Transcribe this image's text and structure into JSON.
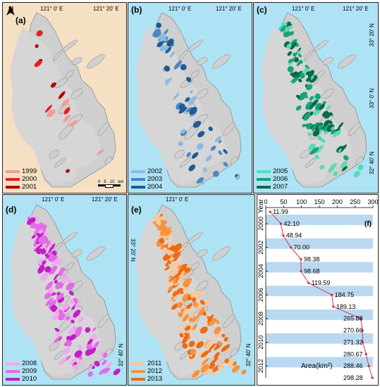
{
  "panels": [
    {
      "label": "(a)",
      "years": [
        "1999",
        "2000",
        "2001"
      ],
      "colors": [
        "#f39a9a",
        "#e32121",
        "#b20000"
      ]
    },
    {
      "label": "(b)",
      "years": [
        "2002",
        "2003",
        "2004"
      ],
      "colors": [
        "#8fb9e0",
        "#4a87c4",
        "#1f5b92"
      ]
    },
    {
      "label": "(c)",
      "years": [
        "2005",
        "2006",
        "2007"
      ],
      "colors": [
        "#58dab8",
        "#16a37a",
        "#0b6a45"
      ]
    },
    {
      "label": "(d)",
      "years": [
        "2008",
        "2009",
        "2010"
      ],
      "colors": [
        "#f0a9ef",
        "#e26ce6",
        "#c41cc8"
      ]
    },
    {
      "label": "(e)",
      "years": [
        "2011",
        "2012",
        "2013"
      ],
      "colors": [
        "#f9c79e",
        "#f8923d",
        "#ee6b10"
      ]
    }
  ],
  "coords": {
    "top_lon_1": "121° 0' E",
    "top_lon_2": "121° 20' E",
    "lat_1": "33° 20' N",
    "lat_2": "33° 0' N",
    "lat_3": "32° 40' N"
  },
  "north_label": "N",
  "scale": {
    "ticks": [
      "0",
      "5",
      "10"
    ],
    "unit": "km"
  },
  "chart_data": {
    "type": "line",
    "label": "(f)",
    "ylabel": "Year",
    "xlabel": "Area(km²)",
    "x_ticks": [
      "0",
      "50",
      "100",
      "150",
      "200",
      "250",
      "300"
    ],
    "y_ticks": [
      "2000",
      "2002",
      "2004",
      "2006",
      "2008",
      "2010",
      "2012"
    ],
    "xlim": [
      0,
      300
    ],
    "ylim": [
      1999,
      2013
    ],
    "series": [
      {
        "years": [
          1999,
          2000,
          2001,
          2002,
          2003,
          2004,
          2005,
          2006,
          2007,
          2008,
          2009,
          2010,
          2011,
          2012,
          2013
        ],
        "values": [
          11.99,
          42.1,
          48.94,
          70.0,
          98.38,
          98.68,
          119.59,
          184.75,
          189.13,
          265.88,
          270.66,
          271.32,
          280.67,
          288.46,
          298.28
        ],
        "labels": [
          "11.99",
          "42.10",
          "48.94",
          "70.00",
          "98.38",
          "98.68",
          "119.59",
          "184.75",
          "189.13",
          "265.88",
          "270.66",
          "271.32",
          "280.67",
          "288.46",
          "298.28"
        ]
      }
    ],
    "line_color": "#d9262e",
    "bar_color": "#b9d9f2"
  }
}
